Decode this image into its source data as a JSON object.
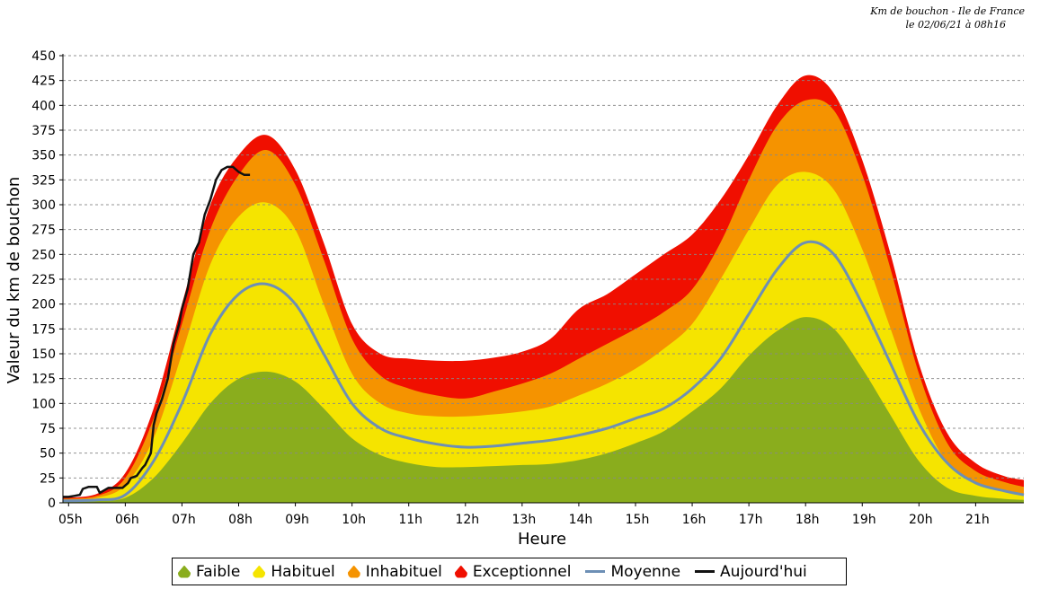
{
  "header": {
    "line1": "Km de bouchon - Ile de France",
    "line2": "le 02/06/21 à 08h16"
  },
  "colors": {
    "faible": "#8aad1d",
    "habituel": "#f5e400",
    "inhabituel": "#f59300",
    "exceptionnel": "#f00f00",
    "moyenne": "#6d8fb5",
    "aujourdhui": "#111111",
    "grid": "#888888"
  },
  "legend": [
    {
      "label": "Faible",
      "kind": "area",
      "color": "#8aad1d"
    },
    {
      "label": "Habituel",
      "kind": "area",
      "color": "#f5e400"
    },
    {
      "label": "Inhabituel",
      "kind": "area",
      "color": "#f59300"
    },
    {
      "label": "Exceptionnel",
      "kind": "area",
      "color": "#f00f00"
    },
    {
      "label": "Moyenne",
      "kind": "line",
      "color": "#6d8fb5"
    },
    {
      "label": "Aujourd'hui",
      "kind": "line",
      "color": "#111111"
    }
  ],
  "chart_data": {
    "type": "area",
    "title": "Km de bouchon - Ile de France",
    "subtitle": "le 02/06/21 à 08h16",
    "xlabel": "Heure",
    "ylabel": "Valeur du  km de bouchon",
    "xlim": [
      4.9,
      21.85
    ],
    "ylim": [
      0,
      450
    ],
    "grid": true,
    "legend_position": "bottom",
    "xticks": [
      {
        "value": 5,
        "label": "05h"
      },
      {
        "value": 6,
        "label": "06h"
      },
      {
        "value": 7,
        "label": "07h"
      },
      {
        "value": 8,
        "label": "08h"
      },
      {
        "value": 9,
        "label": "09h"
      },
      {
        "value": 10,
        "label": "10h"
      },
      {
        "value": 11,
        "label": "11h"
      },
      {
        "value": 12,
        "label": "12h"
      },
      {
        "value": 13,
        "label": "13h"
      },
      {
        "value": 14,
        "label": "14h"
      },
      {
        "value": 15,
        "label": "15h"
      },
      {
        "value": 16,
        "label": "16h"
      },
      {
        "value": 17,
        "label": "17h"
      },
      {
        "value": 18,
        "label": "18h"
      },
      {
        "value": 19,
        "label": "19h"
      },
      {
        "value": 20,
        "label": "20h"
      },
      {
        "value": 21,
        "label": "21h"
      }
    ],
    "yticks": [
      0,
      25,
      50,
      75,
      100,
      125,
      150,
      175,
      200,
      225,
      250,
      275,
      300,
      325,
      350,
      375,
      400,
      425,
      450
    ],
    "x": [
      4.9,
      5.5,
      6.0,
      6.5,
      7.0,
      7.5,
      8.0,
      8.5,
      9.0,
      9.5,
      10.0,
      10.5,
      11.0,
      11.5,
      12.0,
      12.5,
      13.0,
      13.5,
      14.0,
      14.5,
      15.0,
      15.5,
      16.0,
      16.5,
      17.0,
      17.5,
      18.0,
      18.5,
      19.0,
      19.5,
      20.0,
      20.5,
      21.0,
      21.5,
      21.85
    ],
    "series": [
      {
        "name": "Faible",
        "values": [
          2,
          2,
          5,
          25,
          60,
          100,
          125,
          132,
          122,
          95,
          65,
          48,
          40,
          36,
          36,
          37,
          38,
          39,
          43,
          50,
          60,
          72,
          92,
          115,
          148,
          173,
          187,
          175,
          135,
          88,
          42,
          15,
          7,
          4,
          3
        ]
      },
      {
        "name": "Habituel",
        "values": [
          3,
          5,
          18,
          65,
          150,
          240,
          288,
          302,
          275,
          200,
          130,
          100,
          90,
          87,
          87,
          89,
          92,
          97,
          108,
          120,
          135,
          155,
          180,
          225,
          275,
          320,
          333,
          315,
          255,
          175,
          95,
          40,
          20,
          12,
          8
        ]
      },
      {
        "name": "Inhabituel",
        "values": [
          4,
          7,
          25,
          85,
          180,
          275,
          330,
          355,
          320,
          245,
          165,
          128,
          115,
          108,
          105,
          112,
          120,
          130,
          145,
          160,
          175,
          192,
          215,
          262,
          325,
          380,
          405,
          395,
          330,
          235,
          130,
          60,
          32,
          21,
          16
        ]
      },
      {
        "name": "Exceptionnel",
        "values": [
          5,
          9,
          30,
          95,
          200,
          300,
          350,
          370,
          335,
          262,
          180,
          150,
          145,
          143,
          143,
          146,
          152,
          165,
          195,
          210,
          230,
          250,
          270,
          305,
          350,
          400,
          430,
          412,
          345,
          250,
          140,
          70,
          40,
          27,
          23
        ]
      },
      {
        "name": "Moyenne",
        "values": [
          2,
          3,
          8,
          42,
          100,
          170,
          210,
          220,
          200,
          150,
          100,
          75,
          65,
          59,
          56,
          57,
          60,
          63,
          68,
          75,
          85,
          95,
          115,
          145,
          190,
          235,
          262,
          250,
          200,
          140,
          80,
          40,
          20,
          12,
          8
        ]
      }
    ],
    "today": {
      "name": "Aujourd'hui",
      "x": [
        4.9,
        5.0,
        5.1,
        5.2,
        5.25,
        5.35,
        5.5,
        5.55,
        5.7,
        5.85,
        5.95,
        6.05,
        6.1,
        6.2,
        6.3,
        6.35,
        6.45,
        6.5,
        6.55,
        6.65,
        6.75,
        6.85,
        6.95,
        7.0,
        7.1,
        7.2,
        7.3,
        7.4,
        7.5,
        7.6,
        7.7,
        7.8,
        7.9,
        8.0,
        8.1,
        8.2
      ],
      "values": [
        6,
        6,
        7,
        8,
        14,
        16,
        16,
        10,
        15,
        15,
        15,
        20,
        25,
        27,
        35,
        38,
        50,
        78,
        90,
        105,
        125,
        160,
        180,
        195,
        215,
        250,
        262,
        290,
        305,
        325,
        335,
        338,
        338,
        333,
        330,
        330
      ]
    }
  }
}
